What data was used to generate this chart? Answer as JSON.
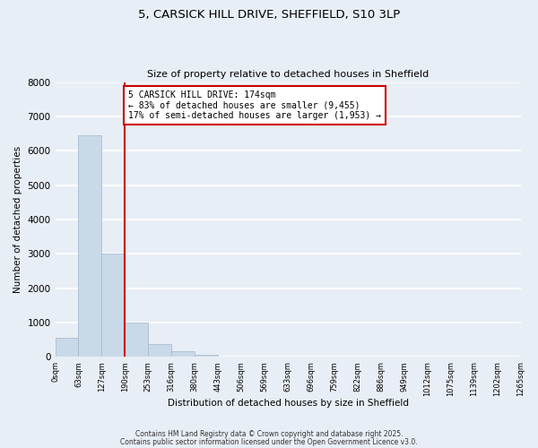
{
  "title": "5, CARSICK HILL DRIVE, SHEFFIELD, S10 3LP",
  "subtitle": "Size of property relative to detached houses in Sheffield",
  "bar_values": [
    550,
    6450,
    3000,
    1000,
    370,
    160,
    60,
    0,
    0,
    0,
    0,
    0,
    0,
    0,
    0,
    0,
    0,
    0,
    0,
    0
  ],
  "bar_color": "#c9d9e8",
  "bar_edge_color": "#a0b8cc",
  "x_labels": [
    "0sqm",
    "63sqm",
    "127sqm",
    "190sqm",
    "253sqm",
    "316sqm",
    "380sqm",
    "443sqm",
    "506sqm",
    "569sqm",
    "633sqm",
    "696sqm",
    "759sqm",
    "822sqm",
    "886sqm",
    "949sqm",
    "1012sqm",
    "1075sqm",
    "1139sqm",
    "1202sqm",
    "1265sqm"
  ],
  "ylabel": "Number of detached properties",
  "xlabel": "Distribution of detached houses by size in Sheffield",
  "ylim": [
    0,
    8000
  ],
  "yticks": [
    0,
    1000,
    2000,
    3000,
    4000,
    5000,
    6000,
    7000,
    8000
  ],
  "property_line_x": 3.0,
  "property_line_color": "#cc0000",
  "annotation_text": "5 CARSICK HILL DRIVE: 174sqm\n← 83% of detached houses are smaller (9,455)\n17% of semi-detached houses are larger (1,953) →",
  "annotation_box_color": "#ffffff",
  "annotation_box_edge_color": "#cc0000",
  "bg_color": "#e8eef5",
  "grid_color": "#ffffff",
  "footnote1": "Contains HM Land Registry data © Crown copyright and database right 2025.",
  "footnote2": "Contains public sector information licensed under the Open Government Licence v3.0."
}
